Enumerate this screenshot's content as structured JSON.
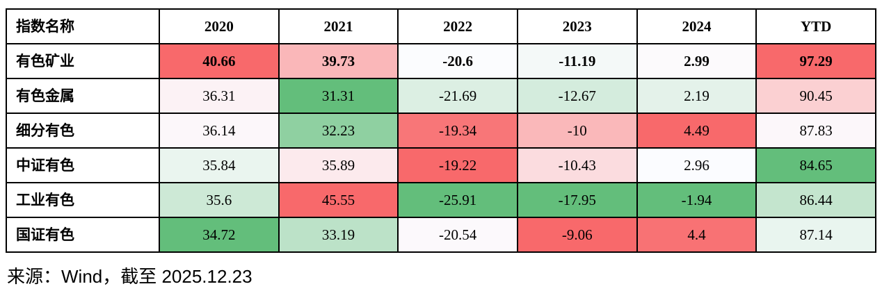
{
  "table": {
    "columns": [
      "指数名称",
      "2020",
      "2021",
      "2022",
      "2023",
      "2024",
      "YTD"
    ],
    "rows": [
      {
        "label": "有色矿业",
        "emphasis": true,
        "cells": [
          {
            "text": "40.66",
            "bg": "#F8696B"
          },
          {
            "text": "39.73",
            "bg": "#FAB7B9"
          },
          {
            "text": "-20.6",
            "bg": "#FBFCFE"
          },
          {
            "text": "-11.19",
            "bg": "#F4F9F8"
          },
          {
            "text": "2.99",
            "bg": "#FCFAFC"
          },
          {
            "text": "97.29",
            "bg": "#F8696B"
          }
        ]
      },
      {
        "label": "有色金属",
        "emphasis": false,
        "cells": [
          {
            "text": "36.31",
            "bg": "#FCF2F5"
          },
          {
            "text": "31.31",
            "bg": "#63BE7B"
          },
          {
            "text": "-21.69",
            "bg": "#DCEFE3"
          },
          {
            "text": "-12.67",
            "bg": "#D4ECDD"
          },
          {
            "text": "2.19",
            "bg": "#E4F2EA"
          },
          {
            "text": "90.45",
            "bg": "#FBD0D2"
          }
        ]
      },
      {
        "label": "细分有色",
        "emphasis": false,
        "cells": [
          {
            "text": "36.14",
            "bg": "#FCF7FA"
          },
          {
            "text": "32.23",
            "bg": "#8FD0A1"
          },
          {
            "text": "-19.34",
            "bg": "#F87678"
          },
          {
            "text": "-10",
            "bg": "#FAB8BA"
          },
          {
            "text": "4.49",
            "bg": "#F8696B"
          },
          {
            "text": "87.83",
            "bg": "#FCF7FA"
          }
        ]
      },
      {
        "label": "中证有色",
        "emphasis": false,
        "cells": [
          {
            "text": "35.84",
            "bg": "#EAF5EF"
          },
          {
            "text": "35.89",
            "bg": "#FCEAED"
          },
          {
            "text": "-19.22",
            "bg": "#F8696B"
          },
          {
            "text": "-10.43",
            "bg": "#FBDCDF"
          },
          {
            "text": "2.96",
            "bg": "#FBFCFF"
          },
          {
            "text": "84.65",
            "bg": "#63BE7B"
          }
        ]
      },
      {
        "label": "工业有色",
        "emphasis": false,
        "cells": [
          {
            "text": "35.6",
            "bg": "#CDE9D6"
          },
          {
            "text": "45.55",
            "bg": "#F8696B"
          },
          {
            "text": "-25.91",
            "bg": "#63BE7B"
          },
          {
            "text": "-17.95",
            "bg": "#63BE7B"
          },
          {
            "text": "-1.94",
            "bg": "#63BE7B"
          },
          {
            "text": "86.44",
            "bg": "#C4E5CE"
          }
        ]
      },
      {
        "label": "国证有色",
        "emphasis": false,
        "cells": [
          {
            "text": "34.72",
            "bg": "#63BE7B"
          },
          {
            "text": "33.19",
            "bg": "#BCE2C8"
          },
          {
            "text": "-20.54",
            "bg": "#FCF9FC"
          },
          {
            "text": "-9.06",
            "bg": "#F8696B"
          },
          {
            "text": "4.4",
            "bg": "#F87274"
          },
          {
            "text": "87.14",
            "bg": "#E9F5EF"
          }
        ]
      }
    ]
  },
  "footer": {
    "text": "来源：Wind，截至 2025.12.23"
  },
  "chart_data": {
    "type": "table",
    "columns": [
      "指数名称",
      "2020",
      "2021",
      "2022",
      "2023",
      "2024",
      "YTD"
    ],
    "rows": [
      {
        "name": "有色矿业",
        "values": [
          40.66,
          39.73,
          -20.6,
          -11.19,
          2.99,
          97.29
        ]
      },
      {
        "name": "有色金属",
        "values": [
          36.31,
          31.31,
          -21.69,
          -12.67,
          2.19,
          90.45
        ]
      },
      {
        "name": "细分有色",
        "values": [
          36.14,
          32.23,
          -19.34,
          -10,
          4.49,
          87.83
        ]
      },
      {
        "name": "中证有色",
        "values": [
          35.84,
          35.89,
          -19.22,
          -10.43,
          2.96,
          84.65
        ]
      },
      {
        "name": "工业有色",
        "values": [
          35.6,
          45.55,
          -25.91,
          -17.95,
          -1.94,
          86.44
        ]
      },
      {
        "name": "国证有色",
        "values": [
          34.72,
          33.19,
          -20.54,
          -9.06,
          4.4,
          87.14
        ]
      }
    ],
    "color_scale": {
      "mode": "per-column three-color scale",
      "high_color": "#F8696B",
      "mid_color": "#FCFCFF",
      "low_color": "#63BE7B"
    },
    "source_note": "来源：Wind，截至 2025.12.23"
  }
}
